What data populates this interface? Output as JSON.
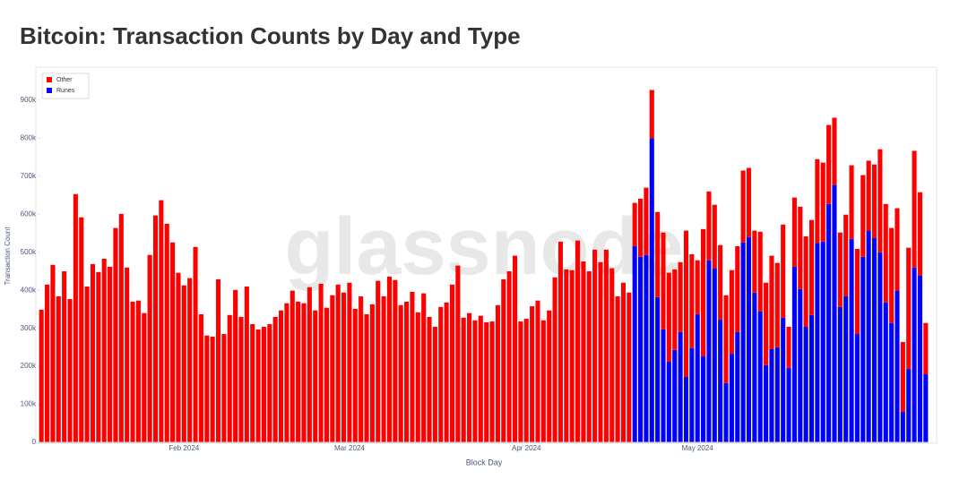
{
  "chart_data": {
    "type": "stacked_bar",
    "title": "Bitcoin: Transaction Counts by Day and Type",
    "watermark": "glassnode",
    "x_label": "Block Day",
    "y_label": "Transaction Count",
    "legend": "top-left",
    "categories": [
      null,
      null,
      null,
      null,
      null,
      null,
      null,
      null,
      null,
      null,
      null,
      null,
      null,
      null,
      null,
      null,
      null,
      null,
      null,
      null,
      null,
      null,
      null,
      null,
      null,
      "Feb 2024",
      null,
      null,
      null,
      null,
      null,
      null,
      null,
      null,
      null,
      null,
      null,
      null,
      null,
      null,
      null,
      null,
      null,
      null,
      null,
      null,
      null,
      null,
      null,
      null,
      null,
      null,
      null,
      null,
      "Mar 2024",
      null,
      null,
      null,
      null,
      null,
      null,
      null,
      null,
      null,
      null,
      null,
      null,
      null,
      null,
      null,
      null,
      null,
      null,
      null,
      null,
      null,
      null,
      null,
      null,
      null,
      null,
      null,
      null,
      null,
      null,
      "Apr 2024",
      null,
      null,
      null,
      null,
      null,
      null,
      null,
      null,
      null,
      null,
      null,
      null,
      null,
      null,
      null,
      null,
      null,
      null,
      null,
      null,
      null,
      null,
      null,
      null,
      null,
      null,
      null,
      null,
      null,
      "May 2024",
      null,
      null,
      null,
      null,
      null,
      null,
      null,
      null,
      null,
      null,
      null,
      null,
      null,
      null,
      null,
      null,
      null,
      null,
      null,
      null,
      null,
      null,
      null,
      null,
      null,
      null,
      null,
      null,
      null,
      null,
      null,
      null,
      null,
      null,
      null,
      null,
      null,
      null,
      null,
      null
    ],
    "series": [
      {
        "name": "Other",
        "color": "#ff0000",
        "values": [
          349000,
          415000,
          467000,
          384000,
          450000,
          377000,
          653000,
          592000,
          410000,
          469000,
          448000,
          483000,
          462000,
          564000,
          601000,
          460000,
          370000,
          373000,
          340000,
          493000,
          597000,
          637000,
          575000,
          526000,
          446000,
          413000,
          432000,
          514000,
          337000,
          281000,
          278000,
          429000,
          285000,
          335000,
          401000,
          330000,
          410000,
          311000,
          297000,
          304000,
          311000,
          330000,
          347000,
          366000,
          399000,
          370000,
          366000,
          408000,
          347000,
          417000,
          354000,
          387000,
          415000,
          394000,
          420000,
          351000,
          384000,
          337000,
          363000,
          425000,
          384000,
          436000,
          427000,
          361000,
          370000,
          396000,
          342000,
          392000,
          330000,
          304000,
          356000,
          368000,
          415000,
          465000,
          328000,
          340000,
          321000,
          333000,
          316000,
          318000,
          361000,
          429000,
          450000,
          491000,
          318000,
          325000,
          358000,
          373000,
          321000,
          347000,
          434000,
          528000,
          455000,
          453000,
          531000,
          476000,
          450000,
          507000,
          474000,
          507000,
          458000,
          384000,
          420000,
          394000,
          114000,
          153000,
          177000,
          127000,
          224000,
          255000,
          234000,
          212000,
          184000,
          385000,
          247000,
          142000,
          335000,
          181000,
          167000,
          196000,
          231000,
          220000,
          226000,
          189000,
          182000,
          163000,
          210000,
          217000,
          246000,
          222000,
          245000,
          108000,
          182000,
          217000,
          238000,
          250000,
          221000,
          208000,
          208000,
          177000,
          196000,
          215000,
          194000,
          224000,
          215000,
          184000,
          193000,
          271000,
          259000,
          250000,
          217000,
          184000,
          319000,
          307000,
          219000,
          135000
        ]
      },
      {
        "name": "Runes",
        "color": "#0000ff",
        "values": [
          0,
          0,
          0,
          0,
          0,
          0,
          0,
          0,
          0,
          0,
          0,
          0,
          0,
          0,
          0,
          0,
          0,
          0,
          0,
          0,
          0,
          0,
          0,
          0,
          0,
          0,
          0,
          0,
          0,
          0,
          0,
          0,
          0,
          0,
          0,
          0,
          0,
          0,
          0,
          0,
          0,
          0,
          0,
          0,
          0,
          0,
          0,
          0,
          0,
          0,
          0,
          0,
          0,
          0,
          0,
          0,
          0,
          0,
          0,
          0,
          0,
          0,
          0,
          0,
          0,
          0,
          0,
          0,
          0,
          0,
          0,
          0,
          0,
          0,
          0,
          0,
          0,
          0,
          0,
          0,
          0,
          0,
          0,
          0,
          0,
          0,
          0,
          0,
          0,
          0,
          0,
          0,
          0,
          0,
          0,
          0,
          0,
          0,
          0,
          0,
          0,
          0,
          0,
          0,
          516000,
          488000,
          493000,
          800000,
          382000,
          297000,
          212000,
          243000,
          290000,
          172000,
          248000,
          337000,
          226000,
          479000,
          458000,
          323000,
          156000,
          233000,
          290000,
          526000,
          540000,
          394000,
          344000,
          203000,
          245000,
          250000,
          328000,
          196000,
          462000,
          403000,
          304000,
          335000,
          524000,
          528000,
          627000,
          677000,
          356000,
          384000,
          535000,
          285000,
          488000,
          557000,
          538000,
          500000,
          368000,
          314000,
          399000,
          80000,
          193000,
          460000,
          439000,
          179000
        ]
      }
    ],
    "ylim": [
      0,
      980000
    ],
    "yticks": [
      0,
      {
        "value": 100000,
        "label": "100k"
      },
      {
        "value": 200000,
        "label": "200k"
      },
      {
        "value": 300000,
        "label": "300k"
      },
      {
        "value": 400000,
        "label": "400k"
      },
      {
        "value": 500000,
        "label": "500k"
      },
      {
        "value": 600000,
        "label": "600k"
      },
      {
        "value": 700000,
        "label": "700k"
      },
      {
        "value": 800000,
        "label": "800k"
      },
      {
        "value": 900000,
        "label": "900k"
      }
    ]
  }
}
